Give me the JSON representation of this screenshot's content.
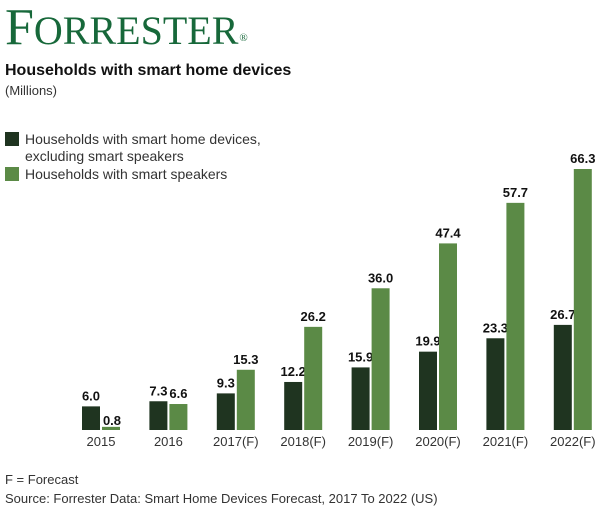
{
  "logo": "FORRESTER",
  "chart_data": {
    "type": "bar",
    "title": "Households with smart home devices",
    "subtitle": "(Millions)",
    "categories": [
      "2015",
      "2016",
      "2017(F)",
      "2018(F)",
      "2019(F)",
      "2020(F)",
      "2021(F)",
      "2022(F)"
    ],
    "series": [
      {
        "name": "Households with smart home devices, excluding smart speakers",
        "name_line1": "Households with smart home devices,",
        "name_line2": "excluding smart speakers",
        "color": "#1f3420",
        "values": [
          6.0,
          7.3,
          9.3,
          12.2,
          15.9,
          19.9,
          23.3,
          26.7
        ]
      },
      {
        "name": "Households with smart speakers",
        "color": "#5b8a46",
        "values": [
          0.8,
          6.6,
          15.3,
          26.2,
          36.0,
          47.4,
          57.7,
          66.3
        ]
      }
    ],
    "legend": "top-left",
    "grid": false,
    "ylim": [
      0,
      66.3
    ],
    "note": "F = Forecast",
    "source": "Source: Forrester Data: Smart Home Devices Forecast, 2017 To 2022 (US)"
  }
}
